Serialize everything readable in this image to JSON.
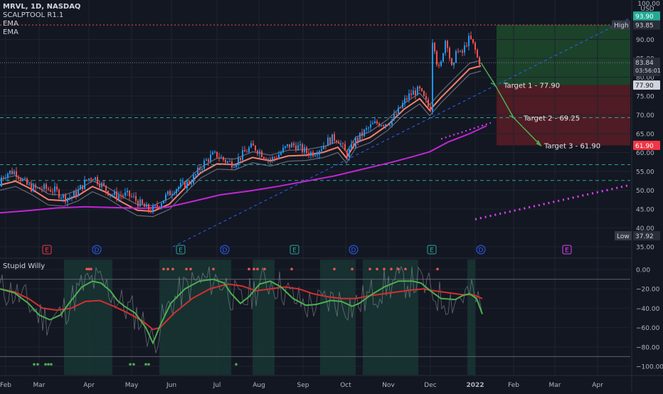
{
  "header": {
    "title": "MRVL, 1D, NASDAQ",
    "indicators": [
      "SCALPTOOL R1.1",
      "EMA",
      "EMA"
    ]
  },
  "currency": "USD",
  "lower_pane": {
    "title": "Stupid Willy"
  },
  "price_tags": {
    "high_label": "High",
    "high_value": "93.85",
    "low_label": "Low",
    "low_value": "37.92",
    "top_value": "93.90",
    "last_price": "83.84",
    "countdown": "03:56:01",
    "t1": "77.90",
    "t3": "61.90",
    "axis_top_cut": "100.00"
  },
  "targets": [
    {
      "label": "Target 1 - 77.90",
      "value": 77.9
    },
    {
      "label": "Target 2 - 69.25",
      "value": 69.25
    },
    {
      "label": "Target 3 - 61.90",
      "value": 61.9
    }
  ],
  "events": [
    "E",
    "D",
    "E",
    "D",
    "E",
    "D",
    "E",
    "D",
    "E"
  ],
  "colors": {
    "bg": "#131722",
    "up": "#2196f3",
    "down": "#ef5350",
    "ema_fast": "#f23645",
    "ema_slow": "#9c27b0",
    "green": "#4caf50"
  },
  "chart_data": [
    {
      "type": "candlestick",
      "ylim": [
        35,
        100
      ],
      "y_ticks": [
        "35.00",
        "40.00",
        "45.00",
        "50.00",
        "55.00",
        "60.00",
        "65.00",
        "70.00",
        "75.00",
        "80.00",
        "85.00",
        "90.00"
      ],
      "x_ticks": [
        "Feb",
        "Mar",
        "Apr",
        "May",
        "Jun",
        "Jul",
        "Aug",
        "Sep",
        "Oct",
        "Nov",
        "Dec",
        "2022",
        "Feb",
        "Mar",
        "Apr"
      ],
      "horizontal_levels": [
        93.85,
        69.25,
        56.8,
        52.6
      ],
      "series": [
        {
          "name": "SCALPTOOL R1.1",
          "values": [
            [
              0,
              51.4
            ],
            [
              22,
              52.4
            ],
            [
              45,
              50.2
            ],
            [
              68,
              47.5
            ],
            [
              90,
              47.2
            ],
            [
              110,
              48.6
            ],
            [
              130,
              51.0
            ],
            [
              150,
              49.4
            ],
            [
              172,
              46.8
            ],
            [
              193,
              44.7
            ],
            [
              215,
              44.4
            ],
            [
              238,
              46.3
            ],
            [
              260,
              50.6
            ],
            [
              282,
              54.6
            ],
            [
              305,
              57.0
            ],
            [
              330,
              56.8
            ],
            [
              355,
              58.7
            ],
            [
              380,
              57.8
            ],
            [
              405,
              59.1
            ],
            [
              430,
              59.3
            ],
            [
              455,
              60.1
            ],
            [
              475,
              61.4
            ],
            [
              487,
              58.6
            ],
            [
              500,
              62.6
            ],
            [
              520,
              64.0
            ],
            [
              545,
              67.3
            ],
            [
              568,
              71.5
            ],
            [
              590,
              74.3
            ],
            [
              604,
              71.2
            ],
            [
              620,
              74.6
            ],
            [
              640,
              78.4
            ],
            [
              660,
              82.2
            ],
            [
              676,
              83.0
            ]
          ]
        },
        {
          "name": "EMA",
          "values": [
            [
              0,
              44.0
            ],
            [
              40,
              44.6
            ],
            [
              80,
              45.3
            ],
            [
              120,
              45.6
            ],
            [
              160,
              45.4
            ],
            [
              200,
              45.2
            ],
            [
              235,
              45.5
            ],
            [
              270,
              47.0
            ],
            [
              310,
              48.8
            ],
            [
              350,
              49.8
            ],
            [
              390,
              51.0
            ],
            [
              430,
              52.4
            ],
            [
              470,
              53.8
            ],
            [
              510,
              55.6
            ],
            [
              550,
              57.4
            ],
            [
              580,
              58.9
            ],
            [
              604,
              60.2
            ],
            [
              630,
              62.8
            ],
            [
              660,
              65.0
            ],
            [
              684,
              67.1
            ]
          ]
        }
      ]
    },
    {
      "type": "line",
      "title": "Stupid Willy",
      "ylim": [
        -105,
        5
      ],
      "y_ticks": [
        "0.00",
        "−20.00",
        "−40.00",
        "−60.00",
        "−80.00",
        "−100.00"
      ],
      "series": [
        {
          "name": "fast",
          "values": [
            [
              0,
              -20
            ],
            [
              20,
              -24
            ],
            [
              40,
              -35
            ],
            [
              55,
              -47
            ],
            [
              70,
              -52
            ],
            [
              85,
              -47
            ],
            [
              100,
              -32
            ],
            [
              115,
              -18
            ],
            [
              130,
              -12
            ],
            [
              142,
              -14
            ],
            [
              155,
              -22
            ],
            [
              165,
              -32
            ],
            [
              175,
              -38
            ],
            [
              190,
              -45
            ],
            [
              205,
              -60
            ],
            [
              215,
              -76
            ],
            [
              225,
              -58
            ],
            [
              240,
              -35
            ],
            [
              260,
              -20
            ],
            [
              280,
              -12
            ],
            [
              300,
              -10
            ],
            [
              315,
              -14
            ],
            [
              325,
              -25
            ],
            [
              338,
              -35
            ],
            [
              350,
              -28
            ],
            [
              365,
              -15
            ],
            [
              380,
              -12
            ],
            [
              395,
              -18
            ],
            [
              412,
              -30
            ],
            [
              430,
              -37
            ],
            [
              445,
              -36
            ],
            [
              465,
              -32
            ],
            [
              480,
              -33
            ],
            [
              495,
              -38
            ],
            [
              505,
              -35
            ],
            [
              520,
              -27
            ],
            [
              540,
              -18
            ],
            [
              560,
              -12
            ],
            [
              580,
              -12
            ],
            [
              592,
              -14
            ],
            [
              605,
              -22
            ],
            [
              620,
              -30
            ],
            [
              640,
              -31
            ],
            [
              650,
              -27
            ],
            [
              660,
              -25
            ],
            [
              670,
              -30
            ],
            [
              678,
              -46
            ]
          ]
        },
        {
          "name": "slow",
          "values": [
            [
              0,
              -20
            ],
            [
              20,
              -23
            ],
            [
              40,
              -30
            ],
            [
              60,
              -40
            ],
            [
              80,
              -42
            ],
            [
              100,
              -40
            ],
            [
              120,
              -33
            ],
            [
              140,
              -32
            ],
            [
              160,
              -38
            ],
            [
              180,
              -45
            ],
            [
              200,
              -53
            ],
            [
              215,
              -62
            ],
            [
              225,
              -60
            ],
            [
              245,
              -45
            ],
            [
              270,
              -30
            ],
            [
              295,
              -20
            ],
            [
              320,
              -15
            ],
            [
              340,
              -17
            ],
            [
              360,
              -22
            ],
            [
              380,
              -20
            ],
            [
              400,
              -18
            ],
            [
              420,
              -20
            ],
            [
              440,
              -25
            ],
            [
              460,
              -28
            ],
            [
              480,
              -30
            ],
            [
              500,
              -30
            ],
            [
              520,
              -27
            ],
            [
              540,
              -25
            ],
            [
              560,
              -23
            ],
            [
              580,
              -21
            ],
            [
              595,
              -20
            ],
            [
              610,
              -22
            ],
            [
              630,
              -24
            ],
            [
              650,
              -26
            ],
            [
              665,
              -26
            ],
            [
              678,
              -30
            ]
          ]
        }
      ]
    }
  ]
}
